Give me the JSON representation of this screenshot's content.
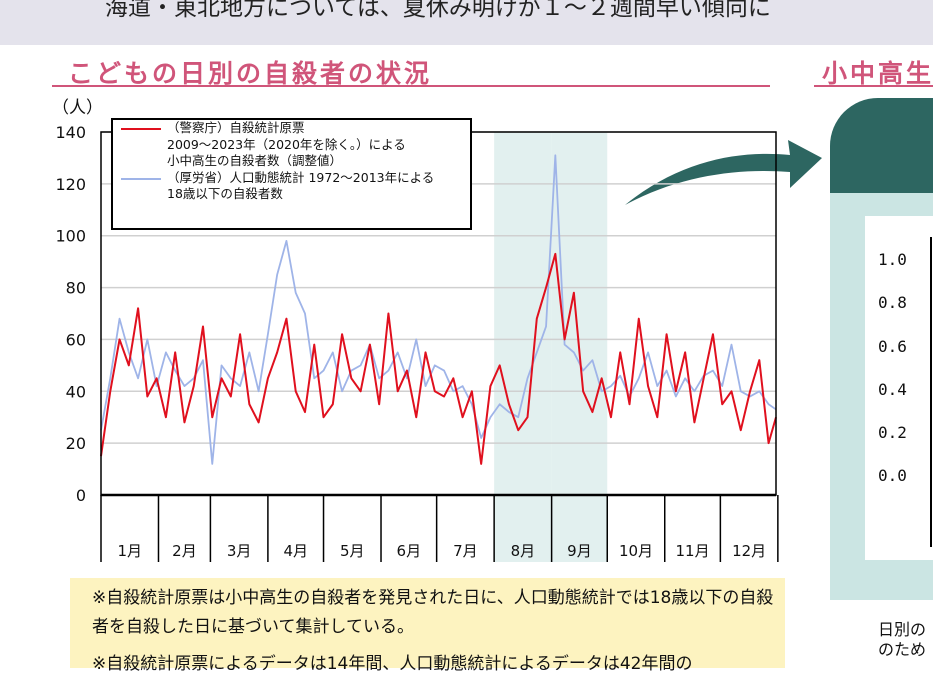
{
  "header_text": "海道・東北地方については、夏休み明けが１～２週間早い傾向に",
  "section_title": "こどもの日別の自殺者の状況",
  "right_section_title": "小中高生",
  "note_lines": [
    "※自殺統計原票は小中高生の自殺者を発見された日に、人口動態統計では18歳以下の自殺者を自殺した日に基づいて集計している。",
    "※自殺統計原票によるデータは14年間、人口動態統計によるデータは42年間の"
  ],
  "right_panel": {
    "y_ticks": [
      "1.0",
      "0.8",
      "0.6",
      "0.4",
      "0.2",
      "0.0"
    ],
    "caption_lines": [
      "日別の",
      "のため"
    ],
    "colors": {
      "header": "#2d6661",
      "body": "#cbe5e3",
      "arrow": "#2d6661"
    }
  },
  "chart_data": {
    "type": "line",
    "ylabel": "（人）",
    "ylim": [
      0,
      140
    ],
    "y_ticks": [
      "0",
      "20",
      "40",
      "60",
      "80",
      "100",
      "120",
      "140"
    ],
    "month_labels": [
      "1月",
      "2月",
      "3月",
      "4月",
      "5月",
      "6月",
      "7月",
      "8月",
      "9月",
      "10月",
      "11月",
      "12月"
    ],
    "highlight_months": [
      "8月",
      "9月"
    ],
    "grid": true,
    "legend_placement": "top-left",
    "x_unit": "day of year",
    "x": [
      1,
      6,
      11,
      16,
      21,
      26,
      31,
      36,
      41,
      46,
      51,
      56,
      61,
      66,
      71,
      76,
      81,
      86,
      91,
      96,
      101,
      106,
      111,
      116,
      121,
      126,
      131,
      136,
      141,
      146,
      151,
      156,
      161,
      166,
      171,
      176,
      181,
      186,
      191,
      196,
      201,
      206,
      211,
      216,
      221,
      226,
      231,
      236,
      241,
      246,
      251,
      256,
      261,
      266,
      271,
      276,
      281,
      286,
      291,
      296,
      301,
      306,
      311,
      316,
      321,
      326,
      331,
      336,
      341,
      346,
      351,
      356,
      361,
      365
    ],
    "series": [
      {
        "name": "（警察庁）自殺統計原票 2009～2023年（2020年を除く。）による 小中高生の自殺者数（調整値）",
        "legend_lines": [
          "（警察庁）自殺統計原票",
          "2009～2023年（2020年を除く。）による",
          "小中高生の自殺者数（調整値）"
        ],
        "color": "#e0101e",
        "values": [
          15,
          40,
          60,
          50,
          72,
          38,
          45,
          30,
          55,
          28,
          42,
          65,
          30,
          45,
          38,
          62,
          35,
          28,
          45,
          55,
          68,
          40,
          32,
          58,
          30,
          35,
          62,
          45,
          40,
          58,
          35,
          70,
          40,
          48,
          30,
          55,
          40,
          38,
          45,
          30,
          40,
          12,
          42,
          50,
          35,
          25,
          30,
          68,
          80,
          93,
          60,
          78,
          40,
          32,
          45,
          30,
          55,
          35,
          68,
          42,
          30,
          62,
          40,
          55,
          28,
          45,
          62,
          35,
          40,
          25,
          40,
          52,
          20,
          30
        ]
      },
      {
        "name": "（厚労省）人口動態統計 1972～2013年による 18歳以下の自殺者数",
        "legend_lines": [
          "（厚労省）人口動態統計  1972～2013年による",
          "18歳以下の自殺者数"
        ],
        "color": "#9fb4e8",
        "values": [
          25,
          45,
          68,
          55,
          45,
          60,
          42,
          55,
          48,
          42,
          45,
          52,
          12,
          50,
          45,
          42,
          55,
          40,
          62,
          85,
          98,
          78,
          70,
          45,
          48,
          55,
          40,
          48,
          50,
          58,
          45,
          48,
          55,
          45,
          60,
          42,
          50,
          48,
          40,
          42,
          35,
          22,
          30,
          35,
          32,
          30,
          45,
          55,
          65,
          131,
          58,
          55,
          48,
          52,
          40,
          42,
          46,
          38,
          45,
          55,
          42,
          48,
          38,
          45,
          40,
          46,
          48,
          42,
          58,
          40,
          38,
          40,
          35,
          33
        ]
      }
    ]
  }
}
